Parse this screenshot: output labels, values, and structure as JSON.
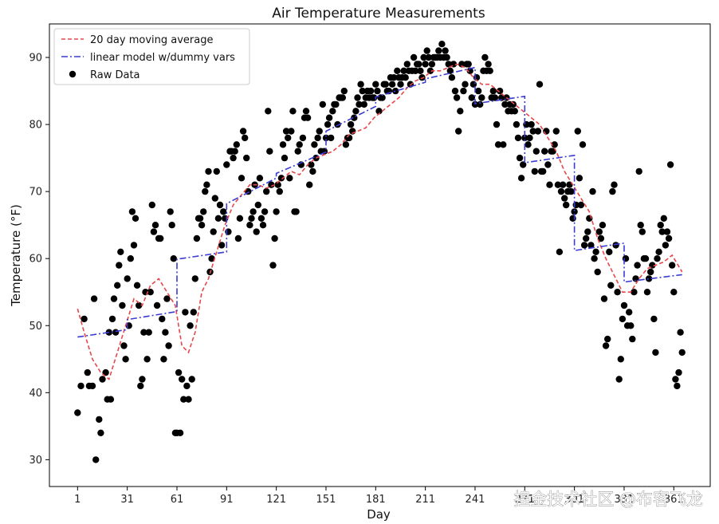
{
  "chart_data": {
    "type": "scatter",
    "title": "Air Temperature Measurements",
    "xlabel": "Day",
    "ylabel": "Temperature (°F)",
    "xlim": [
      -16,
      383
    ],
    "ylim": [
      26,
      95
    ],
    "x_ticks": [
      1,
      31,
      61,
      91,
      121,
      151,
      181,
      211,
      241,
      271,
      301,
      331,
      361
    ],
    "x_tick_labels": [
      "1",
      "31",
      "61",
      "91",
      "121",
      "151",
      "181",
      "211",
      "241",
      "271",
      "301",
      "331",
      "361"
    ],
    "y_ticks": [
      30,
      40,
      50,
      60,
      70,
      80,
      90
    ],
    "legend_position": "upper-left",
    "series": [
      {
        "name": "20 day moving average",
        "style": "dashed",
        "color": "#e8474a",
        "x": [
          1,
          5,
          10,
          15,
          20,
          25,
          30,
          35,
          40,
          45,
          50,
          55,
          60,
          64,
          68,
          72,
          76,
          80,
          85,
          90,
          95,
          100,
          105,
          110,
          115,
          120,
          125,
          130,
          135,
          140,
          145,
          150,
          155,
          160,
          165,
          170,
          175,
          180,
          185,
          190,
          195,
          200,
          205,
          210,
          215,
          220,
          225,
          230,
          235,
          240,
          245,
          250,
          255,
          260,
          265,
          270,
          275,
          280,
          285,
          290,
          295,
          300,
          305,
          310,
          315,
          320,
          325,
          330,
          335,
          340,
          345,
          350,
          355,
          360,
          366
        ],
        "y": [
          52.5,
          49,
          45,
          43,
          42,
          46,
          50,
          54,
          53,
          56,
          57,
          55,
          53,
          47,
          46,
          49,
          55,
          57,
          61,
          65,
          68,
          69.5,
          71,
          71,
          70.5,
          71,
          72,
          73,
          72.5,
          74,
          75,
          75.5,
          76,
          77,
          78.5,
          79,
          79.5,
          81,
          82,
          83,
          84,
          85.5,
          86.5,
          87,
          88,
          88,
          88.5,
          89,
          88.5,
          87,
          86,
          86,
          85,
          84,
          83,
          82,
          81,
          80,
          78,
          76,
          73,
          71,
          69,
          67,
          63,
          60,
          57.5,
          55,
          55,
          57,
          58.5,
          59,
          59.5,
          60.5,
          58
        ]
      },
      {
        "name": "linear model w/dummy vars",
        "style": "dashdot",
        "color": "#3b3bd6",
        "x": [
          1,
          31,
          31,
          61,
          61,
          91,
          91,
          121,
          121,
          151,
          151,
          181,
          181,
          211,
          211,
          241,
          241,
          271,
          271,
          301,
          301,
          331,
          331,
          366
        ],
        "y": [
          48.3,
          49.4,
          50.9,
          52.1,
          59.9,
          61.0,
          68.2,
          72.0,
          72.7,
          75.9,
          79.0,
          82.7,
          84.1,
          86.3,
          86.8,
          88.5,
          83.1,
          84.2,
          74.3,
          75.4,
          61.2,
          62.3,
          56.5,
          57.6
        ]
      },
      {
        "name": "Raw Data",
        "style": "points",
        "color": "#000000",
        "x": [
          1,
          3,
          5,
          7,
          8,
          10,
          11,
          12,
          14,
          15,
          16,
          18,
          19,
          20,
          21,
          22,
          23,
          24,
          25,
          26,
          27,
          28,
          29,
          30,
          31,
          32,
          33,
          34,
          35,
          36,
          37,
          38,
          39,
          40,
          41,
          42,
          43,
          44,
          45,
          46,
          47,
          48,
          49,
          50,
          51,
          52,
          53,
          54,
          55,
          56,
          57,
          58,
          59,
          60,
          61,
          62,
          63,
          64,
          65,
          66,
          67,
          68,
          69,
          70,
          71,
          72,
          73,
          74,
          75,
          76,
          77,
          78,
          79,
          80,
          81,
          82,
          83,
          84,
          85,
          86,
          87,
          88,
          89,
          90,
          91,
          92,
          93,
          94,
          95,
          96,
          97,
          98,
          99,
          100,
          101,
          102,
          103,
          104,
          105,
          106,
          107,
          108,
          109,
          110,
          111,
          112,
          113,
          114,
          115,
          116,
          117,
          118,
          119,
          120,
          121,
          122,
          123,
          124,
          125,
          126,
          127,
          128,
          129,
          130,
          131,
          132,
          133,
          134,
          135,
          136,
          137,
          138,
          139,
          140,
          141,
          142,
          143,
          144,
          145,
          146,
          147,
          148,
          149,
          150,
          151,
          152,
          153,
          154,
          155,
          156,
          157,
          158,
          159,
          160,
          161,
          162,
          163,
          164,
          165,
          166,
          167,
          168,
          169,
          170,
          171,
          172,
          173,
          174,
          175,
          176,
          177,
          178,
          179,
          180,
          181,
          182,
          183,
          184,
          185,
          186,
          187,
          188,
          189,
          190,
          191,
          192,
          193,
          194,
          195,
          196,
          197,
          198,
          199,
          200,
          201,
          202,
          203,
          204,
          205,
          206,
          207,
          208,
          209,
          210,
          211,
          212,
          213,
          214,
          215,
          216,
          217,
          218,
          219,
          220,
          221,
          222,
          223,
          224,
          225,
          226,
          227,
          228,
          229,
          230,
          231,
          232,
          233,
          234,
          235,
          236,
          237,
          238,
          239,
          240,
          241,
          242,
          243,
          244,
          245,
          246,
          247,
          248,
          249,
          250,
          251,
          252,
          253,
          254,
          255,
          256,
          257,
          258,
          259,
          260,
          261,
          262,
          263,
          264,
          265,
          266,
          267,
          268,
          269,
          270,
          271,
          272,
          273,
          274,
          275,
          276,
          277,
          278,
          279,
          280,
          281,
          282,
          283,
          284,
          285,
          286,
          287,
          288,
          289,
          290,
          291,
          292,
          293,
          294,
          295,
          296,
          297,
          298,
          299,
          300,
          301,
          302,
          303,
          304,
          305,
          306,
          307,
          308,
          309,
          310,
          311,
          312,
          313,
          314,
          315,
          316,
          317,
          318,
          319,
          320,
          321,
          322,
          323,
          324,
          325,
          326,
          327,
          328,
          329,
          330,
          331,
          332,
          333,
          334,
          335,
          336,
          337,
          338,
          339,
          340,
          341,
          342,
          343,
          344,
          345,
          346,
          347,
          348,
          349,
          350,
          351,
          352,
          353,
          354,
          355,
          356,
          357,
          358,
          359,
          360,
          361,
          362,
          363,
          364,
          365,
          366
        ],
        "y": [
          37,
          41,
          51,
          43,
          41,
          41,
          54,
          30,
          36,
          34,
          42,
          43,
          39,
          49,
          39,
          51,
          54,
          49,
          56,
          59,
          61,
          53,
          47,
          45,
          57,
          50,
          60,
          67,
          62,
          66,
          56,
          53,
          41,
          42,
          49,
          55,
          45,
          49,
          55,
          68,
          64,
          65,
          53,
          63,
          63,
          51,
          45,
          49,
          54,
          47,
          67,
          65,
          60,
          34,
          34,
          43,
          34,
          42,
          39,
          52,
          41,
          39,
          50,
          42,
          52,
          57,
          63,
          66,
          66,
          65,
          67,
          70,
          71,
          73,
          58,
          60,
          64,
          69,
          73,
          66,
          68,
          62,
          67,
          66,
          74,
          64,
          76,
          76,
          75,
          76,
          77,
          63,
          66,
          72,
          79,
          78,
          75,
          70,
          65,
          66,
          67,
          71,
          64,
          68,
          72,
          66,
          65,
          67,
          70,
          82,
          76,
          71,
          59,
          63,
          67,
          71,
          70,
          72,
          77,
          75,
          79,
          78,
          72,
          79,
          82,
          67,
          67,
          76,
          77,
          74,
          78,
          81,
          82,
          81,
          71,
          74,
          73,
          77,
          75,
          78,
          79,
          76,
          83,
          76,
          78,
          80,
          81,
          78,
          82,
          83,
          83,
          80,
          84,
          84,
          84,
          85,
          77,
          78,
          78,
          80,
          79,
          81,
          82,
          84,
          83,
          86,
          85,
          83,
          84,
          85,
          84,
          85,
          84,
          84,
          86,
          85,
          82,
          84,
          84,
          86,
          86,
          85,
          85,
          87,
          86,
          87,
          85,
          88,
          87,
          86,
          87,
          88,
          87,
          89,
          88,
          86,
          88,
          90,
          88,
          89,
          89,
          88,
          87,
          90,
          89,
          91,
          90,
          88,
          89,
          90,
          90,
          90,
          91,
          90,
          92,
          90,
          91,
          90,
          89,
          88,
          87,
          89,
          85,
          84,
          79,
          82,
          89,
          85,
          86,
          89,
          89,
          88,
          84,
          86,
          83,
          87,
          85,
          83,
          84,
          88,
          90,
          88,
          89,
          88,
          84,
          85,
          84,
          80,
          77,
          85,
          84,
          77,
          83,
          84,
          82,
          83,
          82,
          83,
          82,
          80,
          78,
          75,
          72,
          74,
          78,
          80,
          77,
          78,
          80,
          79,
          73,
          76,
          79,
          86,
          73,
          73,
          76,
          79,
          74,
          71,
          76,
          76,
          77,
          79,
          71,
          61,
          70,
          71,
          69,
          68,
          70,
          71,
          70,
          66,
          67,
          68,
          79,
          72,
          68,
          77,
          62,
          63,
          64,
          66,
          62,
          70,
          60,
          61,
          58,
          64,
          63,
          65,
          54,
          47,
          48,
          61,
          56,
          70,
          71,
          62,
          55,
          42,
          45,
          51,
          53,
          60,
          50,
          52,
          50,
          48,
          55,
          57,
          59,
          73,
          65,
          64,
          60,
          60,
          55,
          57,
          58,
          59,
          51,
          46,
          60,
          61,
          65,
          64,
          66,
          62,
          64,
          63,
          74,
          59,
          55,
          42,
          41,
          43,
          49,
          46
        ]
      }
    ]
  },
  "watermark": "揘金技术社区 @布客飞龙"
}
